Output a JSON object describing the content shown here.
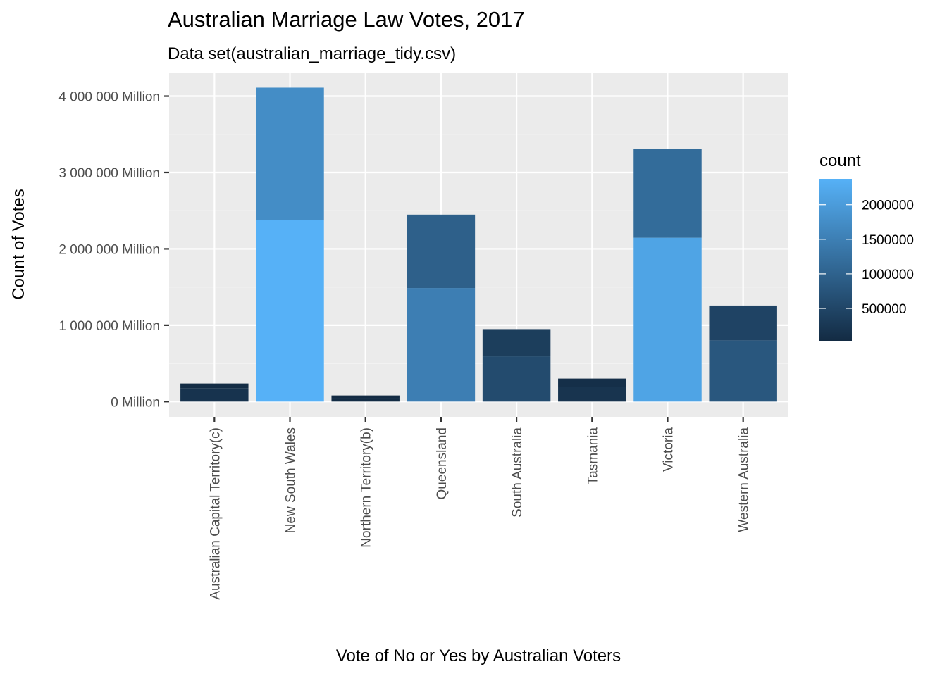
{
  "chart_data": {
    "type": "bar",
    "stacked": true,
    "title": "Australian Marriage Law Votes, 2017",
    "subtitle": "Data set(australian_marriage_tidy.csv)",
    "xlabel": "Vote of No or Yes by Australian Voters",
    "ylabel": "Count of Votes",
    "ylim": [
      -200000,
      4300000
    ],
    "y_ticks": [
      {
        "value": 0,
        "label": "0 Million"
      },
      {
        "value": 1000000,
        "label": "1 000 000 Million"
      },
      {
        "value": 2000000,
        "label": "2 000 000 Million"
      },
      {
        "value": 3000000,
        "label": "3 000 000 Million"
      },
      {
        "value": 4000000,
        "label": "4 000 000 Million"
      }
    ],
    "categories": [
      "Australian Capital Territory(c)",
      "New South Wales",
      "Northern Territory(b)",
      "Queensland",
      "South Australia",
      "Tasmania",
      "Victoria",
      "Western Australia"
    ],
    "segments": [
      [
        {
          "count": 175459
        },
        {
          "count": 61520
        }
      ],
      [
        {
          "count": 2374362
        },
        {
          "count": 1736838
        }
      ],
      [
        {
          "count": 48686
        },
        {
          "count": 31361
        }
      ],
      [
        {
          "count": 1487060
        },
        {
          "count": 961015
        }
      ],
      [
        {
          "count": 592528
        },
        {
          "count": 356247
        }
      ],
      [
        {
          "count": 191948
        },
        {
          "count": 109655
        }
      ],
      [
        {
          "count": 2145629
        },
        {
          "count": 1161098
        }
      ],
      [
        {
          "count": 801575
        },
        {
          "count": 455924
        }
      ]
    ],
    "grid": true,
    "legend": {
      "title": "count",
      "position": "right",
      "type": "colorbar",
      "min": 31361,
      "max": 2374362,
      "ticks": [
        {
          "value": 500000,
          "label": "500000"
        },
        {
          "value": 1000000,
          "label": "1000000"
        },
        {
          "value": 1500000,
          "label": "1500000"
        },
        {
          "value": 2000000,
          "label": "2000000"
        }
      ],
      "color_low": "#132B43",
      "color_high": "#56B1F7"
    },
    "colors": {
      "panel_background": "#EBEBEB",
      "grid_major": "#FFFFFF",
      "grid_minor": "#F5F5F5"
    }
  }
}
